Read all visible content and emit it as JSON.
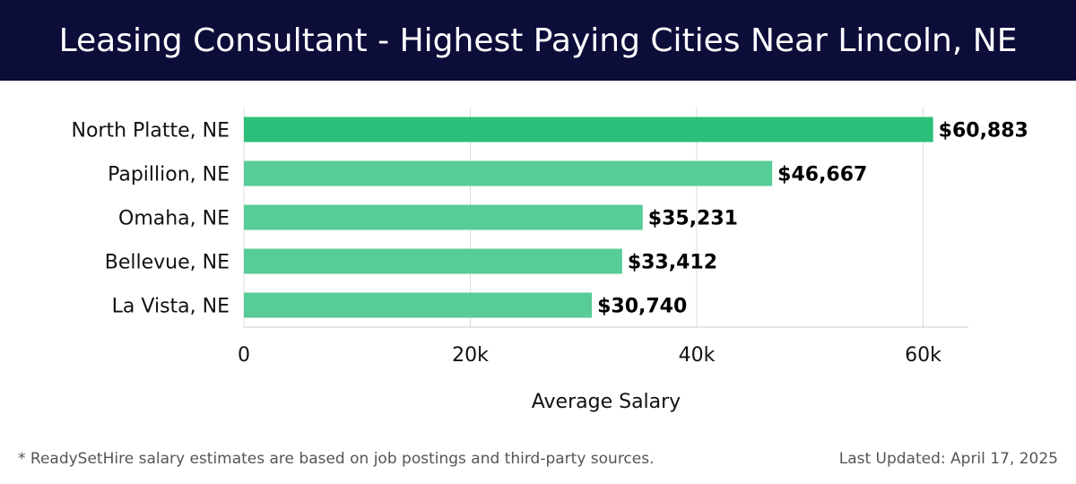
{
  "header": {
    "title": "Leasing Consultant - Highest Paying Cities Near Lincoln, NE"
  },
  "footer": {
    "note": "* ReadySetHire salary estimates are based on job postings and third-party sources.",
    "updated": "Last Updated: April 17, 2025"
  },
  "colors": {
    "header_bg": "#0d0d3a",
    "bar_primary": "#2bbf7a",
    "bar_light": "#57cc97",
    "grid": "#dddddd"
  },
  "chart_data": {
    "type": "bar",
    "orientation": "horizontal",
    "title": "",
    "xlabel": "Average Salary",
    "ylabel": "",
    "xlim": [
      0,
      64000
    ],
    "x_ticks": [
      0,
      20000,
      40000,
      60000
    ],
    "x_tick_labels": [
      "0",
      "20k",
      "40k",
      "60k"
    ],
    "grid": "vertical",
    "categories": [
      "North Platte, NE",
      "Papillion, NE",
      "Omaha, NE",
      "Bellevue, NE",
      "La Vista, NE"
    ],
    "values": [
      60883,
      46667,
      35231,
      33412,
      30740
    ],
    "value_labels": [
      "$60,883",
      "$46,667",
      "$35,231",
      "$33,412",
      "$30,740"
    ]
  }
}
